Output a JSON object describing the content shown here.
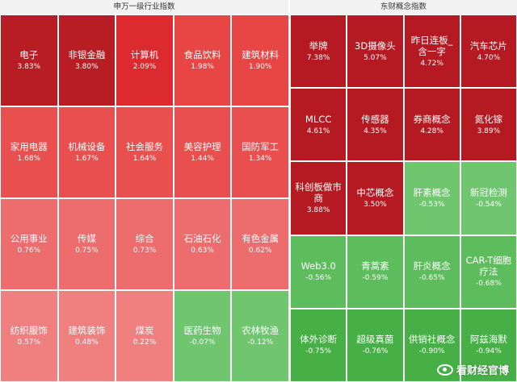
{
  "left_panel": {
    "title": "申万一级行业指数",
    "tiles": [
      {
        "name": "电子",
        "pct": "3.83%",
        "color": "#b91d24"
      },
      {
        "name": "非银金融",
        "pct": "3.80%",
        "color": "#b91d24"
      },
      {
        "name": "计算机",
        "pct": "2.09%",
        "color": "#dd2a2e"
      },
      {
        "name": "食品饮料",
        "pct": "1.98%",
        "color": "#e84545"
      },
      {
        "name": "建筑材料",
        "pct": "1.90%",
        "color": "#e84545"
      },
      {
        "name": "家用电器",
        "pct": "1.68%",
        "color": "#ea4f4f"
      },
      {
        "name": "机械设备",
        "pct": "1.67%",
        "color": "#ea4f4f"
      },
      {
        "name": "社会服务",
        "pct": "1.64%",
        "color": "#ea4f4f"
      },
      {
        "name": "美容护理",
        "pct": "1.44%",
        "color": "#ea4f4f"
      },
      {
        "name": "国防军工",
        "pct": "1.34%",
        "color": "#ea4f4f"
      },
      {
        "name": "公用事业",
        "pct": "0.76%",
        "color": "#ed6c6e"
      },
      {
        "name": "传媒",
        "pct": "0.75%",
        "color": "#ed6c6e"
      },
      {
        "name": "综合",
        "pct": "0.73%",
        "color": "#ed6c6e"
      },
      {
        "name": "石油石化",
        "pct": "0.63%",
        "color": "#ed6c6e"
      },
      {
        "name": "有色金属",
        "pct": "0.62%",
        "color": "#ed6c6e"
      },
      {
        "name": "纺织服饰",
        "pct": "0.57%",
        "color": "#f08080"
      },
      {
        "name": "建筑装饰",
        "pct": "0.48%",
        "color": "#f08080"
      },
      {
        "name": "煤炭",
        "pct": "0.22%",
        "color": "#f08080"
      },
      {
        "name": "医药生物",
        "pct": "-0.07%",
        "color": "#6fc66f"
      },
      {
        "name": "农林牧渔",
        "pct": "-0.12%",
        "color": "#6fc66f"
      }
    ]
  },
  "right_panel": {
    "title": "东财概念指数",
    "tiles": [
      {
        "name": "举牌",
        "pct": "7.38%",
        "color": "#b51a22"
      },
      {
        "name": "3D摄像头",
        "pct": "5.07%",
        "color": "#b51a22"
      },
      {
        "name": "昨日连板_含一字",
        "pct": "4.72%",
        "color": "#b51a22"
      },
      {
        "name": "汽车芯片",
        "pct": "4.70%",
        "color": "#b51a22"
      },
      {
        "name": "MLCC",
        "pct": "4.61%",
        "color": "#b51a22"
      },
      {
        "name": "传感器",
        "pct": "4.35%",
        "color": "#b51a22"
      },
      {
        "name": "券商概念",
        "pct": "4.28%",
        "color": "#b51a22"
      },
      {
        "name": "氮化镓",
        "pct": "3.89%",
        "color": "#b51a22"
      },
      {
        "name": "科创板做市商",
        "pct": "3.88%",
        "color": "#b51a22"
      },
      {
        "name": "中芯概念",
        "pct": "3.50%",
        "color": "#b51a22"
      },
      {
        "name": "肝素概念",
        "pct": "-0.53%",
        "color": "#6fc66f"
      },
      {
        "name": "新冠检测",
        "pct": "-0.54%",
        "color": "#6fc66f"
      },
      {
        "name": "Web3.0",
        "pct": "-0.56%",
        "color": "#5dbd5d"
      },
      {
        "name": "青蒿素",
        "pct": "-0.59%",
        "color": "#5dbd5d"
      },
      {
        "name": "肝炎概念",
        "pct": "-0.65%",
        "color": "#5dbd5d"
      },
      {
        "name": "CAR-T细胞疗法",
        "pct": "-0.68%",
        "color": "#5dbd5d"
      },
      {
        "name": "体外诊断",
        "pct": "-0.75%",
        "color": "#46b046"
      },
      {
        "name": "超级真菌",
        "pct": "-0.76%",
        "color": "#46b046"
      },
      {
        "name": "供销社概念",
        "pct": "-0.90%",
        "color": "#46b046"
      },
      {
        "name": "阿兹海默",
        "pct": "-0.94%",
        "color": "#46b046"
      }
    ]
  },
  "watermark": {
    "text": "看财经官博"
  }
}
